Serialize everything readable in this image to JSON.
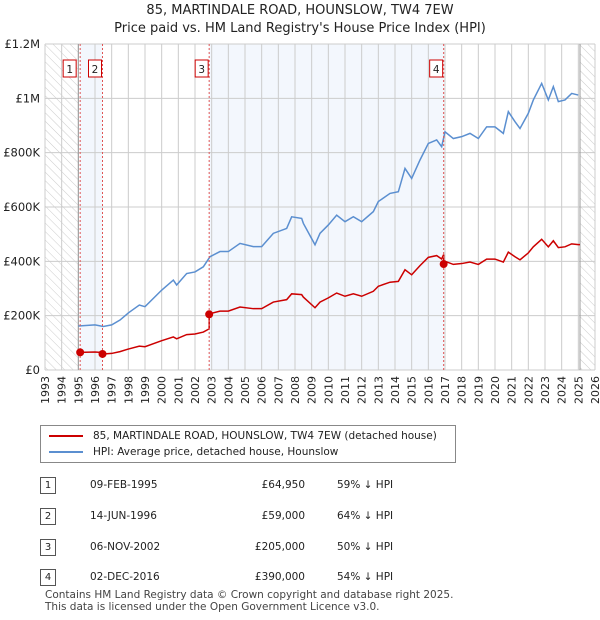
{
  "title": "85, MARTINDALE ROAD, HOUNSLOW, TW4 7EW",
  "subtitle": "Price paid vs. HM Land Registry's House Price Index (HPI)",
  "chart_data": {
    "type": "line",
    "title": "85, MARTINDALE ROAD, HOUNSLOW, TW4 7EW",
    "xlim": [
      1993,
      2026
    ],
    "ylim": [
      0,
      1200000
    ],
    "grid": true,
    "x_ticks": [
      "1993",
      "1994",
      "1995",
      "1996",
      "1997",
      "1998",
      "1999",
      "2000",
      "2001",
      "2002",
      "2003",
      "2004",
      "2005",
      "2006",
      "2007",
      "2008",
      "2009",
      "2010",
      "2011",
      "2012",
      "2013",
      "2014",
      "2015",
      "2016",
      "2017",
      "2018",
      "2019",
      "2020",
      "2021",
      "2022",
      "2023",
      "2024",
      "2025",
      "2026"
    ],
    "y_ticks": [
      {
        "v": 0,
        "label": "£0"
      },
      {
        "v": 200000,
        "label": "£200K"
      },
      {
        "v": 400000,
        "label": "£400K"
      },
      {
        "v": 600000,
        "label": "£600K"
      },
      {
        "v": 800000,
        "label": "£800K"
      },
      {
        "v": 1000000,
        "label": "£1M"
      },
      {
        "v": 1200000,
        "label": "£1.2M"
      }
    ],
    "data_range": [
      1995.0,
      2025.1
    ],
    "series": [
      {
        "name": "HPI: Average price, detached house, Hounslow",
        "color": "#5b8fd0",
        "x": [
          1995.0,
          1996,
          1996.5,
          1997,
          1997.5,
          1998,
          1998.66,
          1999,
          2000,
          2000.7,
          2000.9,
          2001.5,
          2002,
          2002.5,
          2002.9,
          2003.5,
          2004,
          2004.7,
          2005.5,
          2006,
          2006.7,
          2007.5,
          2007.8,
          2008.4,
          2008.5,
          2009.2,
          2009.5,
          2010,
          2010.5,
          2011,
          2011.5,
          2012,
          2012.7,
          2013,
          2013.7,
          2014.2,
          2014.6,
          2015,
          2015.5,
          2016,
          2016.5,
          2016.8,
          2017,
          2017.5,
          2018,
          2018.5,
          2019,
          2019.5,
          2020,
          2020.5,
          2020.8,
          2021.2,
          2021.5,
          2022,
          2022.3,
          2022.8,
          2023.2,
          2023.5,
          2023.8,
          2024.2,
          2024.6,
          2025.0
        ],
        "values": [
          162000,
          166000,
          160000,
          166000,
          184000,
          210000,
          239000,
          233000,
          294000,
          331000,
          313000,
          355000,
          361000,
          380000,
          417000,
          436000,
          436000,
          466000,
          454000,
          454000,
          503000,
          521000,
          564000,
          558000,
          540000,
          461000,
          503000,
          534000,
          570000,
          546000,
          564000,
          546000,
          583000,
          620000,
          650000,
          656000,
          742000,
          705000,
          773000,
          834000,
          847000,
          822000,
          877000,
          852000,
          859000,
          871000,
          852000,
          895000,
          895000,
          871000,
          951000,
          914000,
          889000,
          945000,
          994000,
          1055000,
          994000,
          1043000,
          988000,
          994000,
          1018000,
          1012000
        ]
      },
      {
        "name": "85, MARTINDALE ROAD, HOUNSLOW, TW4 7EW (detached house)",
        "color": "#cc0000"
      }
    ],
    "sales": [
      {
        "id": "1",
        "x": 1995.11,
        "price": 64950
      },
      {
        "id": "2",
        "x": 1996.45,
        "price": 59000
      },
      {
        "id": "3",
        "x": 2002.85,
        "price": 205000
      },
      {
        "id": "4",
        "x": 2016.92,
        "price": 390000
      }
    ]
  },
  "legend": {
    "red": "85, MARTINDALE ROAD, HOUNSLOW, TW4 7EW (detached house)",
    "blue": "HPI: Average price, detached house, Hounslow"
  },
  "table": [
    {
      "n": "1",
      "date": "09-FEB-1995",
      "price": "£64,950",
      "pct": "59% ↓ HPI"
    },
    {
      "n": "2",
      "date": "14-JUN-1996",
      "price": "£59,000",
      "pct": "64% ↓ HPI"
    },
    {
      "n": "3",
      "date": "06-NOV-2002",
      "price": "£205,000",
      "pct": "50% ↓ HPI"
    },
    {
      "n": "4",
      "date": "02-DEC-2016",
      "price": "£390,000",
      "pct": "54% ↓ HPI"
    }
  ],
  "footer": {
    "line1": "Contains HM Land Registry data © Crown copyright and database right 2025.",
    "line2": "This data is licensed under the Open Government Licence v3.0."
  }
}
